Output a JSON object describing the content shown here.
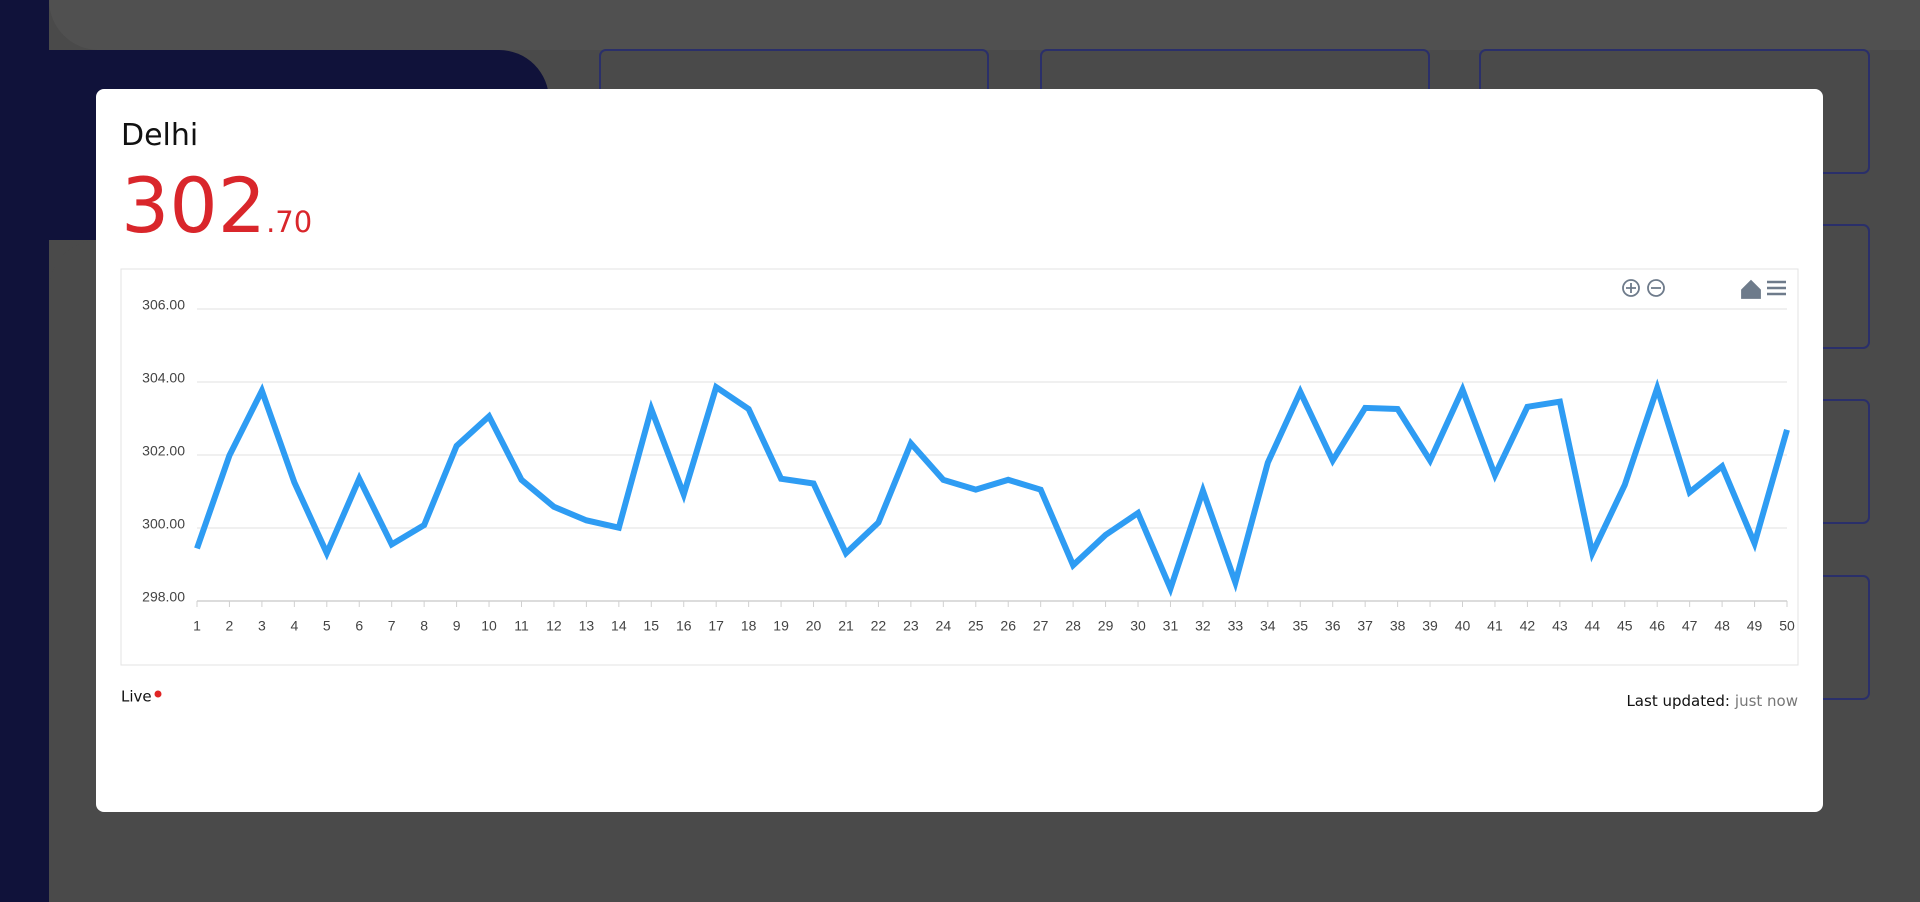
{
  "modal": {
    "title": "Delhi",
    "price_integer": "302",
    "price_decimal": ".70",
    "status": "Live",
    "updated_label": "Last updated:",
    "updated_value": "just now"
  },
  "chart_data": {
    "type": "line",
    "x": [
      1,
      2,
      3,
      4,
      5,
      6,
      7,
      8,
      9,
      10,
      11,
      12,
      13,
      14,
      15,
      16,
      17,
      18,
      19,
      20,
      21,
      22,
      23,
      24,
      25,
      26,
      27,
      28,
      29,
      30,
      31,
      32,
      33,
      34,
      35,
      36,
      37,
      38,
      39,
      40,
      41,
      42,
      43,
      44,
      45,
      46,
      47,
      48,
      49,
      50
    ],
    "series": [
      {
        "color": "#2e9cf3",
        "values": [
          299.44,
          301.99,
          303.76,
          301.25,
          299.31,
          301.35,
          299.55,
          300.08,
          302.25,
          303.06,
          301.32,
          300.58,
          300.21,
          300.01,
          303.26,
          300.92,
          303.86,
          303.26,
          301.35,
          301.22,
          299.31,
          300.15,
          302.32,
          301.32,
          301.05,
          301.32,
          301.05,
          298.98,
          299.81,
          300.41,
          298.34,
          301.02,
          298.51,
          301.79,
          303.73,
          301.85,
          303.29,
          303.26,
          301.85,
          303.79,
          301.45,
          303.32,
          303.46,
          299.31,
          301.18,
          303.83,
          300.98,
          301.69,
          299.58,
          302.69
        ]
      }
    ],
    "xlim": [
      1,
      50
    ],
    "xticks": [
      1,
      2,
      3,
      4,
      5,
      6,
      7,
      8,
      9,
      10,
      11,
      12,
      13,
      14,
      15,
      16,
      17,
      18,
      19,
      20,
      21,
      22,
      23,
      24,
      25,
      26,
      27,
      28,
      29,
      30,
      31,
      32,
      33,
      34,
      35,
      36,
      37,
      38,
      39,
      40,
      41,
      42,
      43,
      44,
      45,
      46,
      47,
      48,
      49,
      50
    ],
    "ylim": [
      298,
      306
    ],
    "yticks": [
      {
        "value": 298,
        "label": "298.00"
      },
      {
        "value": 300,
        "label": "300.00"
      },
      {
        "value": 302,
        "label": "302.00"
      },
      {
        "value": 304,
        "label": "304.00"
      },
      {
        "value": 306,
        "label": "306.00"
      }
    ],
    "grid": true
  }
}
